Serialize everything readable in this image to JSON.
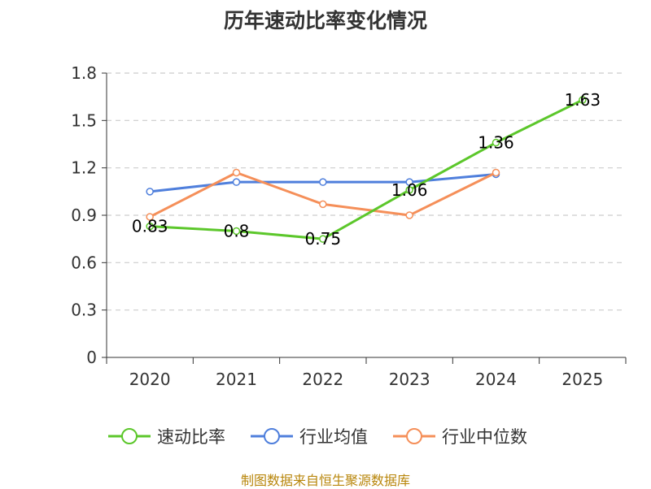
{
  "title": "历年速动比率变化情况",
  "source": "制图数据来自恒生聚源数据库",
  "chart_data": {
    "type": "line",
    "title": "历年速动比率变化情况",
    "categories": [
      "2020",
      "2021",
      "2022",
      "2023",
      "2024",
      "2025"
    ],
    "ylim": [
      0,
      1.8
    ],
    "yticks": [
      "0",
      "0.3",
      "0.6",
      "0.9",
      "1.2",
      "1.5",
      "1.8"
    ],
    "grid": true,
    "legend_position": "bottom",
    "series": [
      {
        "name": "速动比率",
        "color": "#5cc72b",
        "labeled": true,
        "values": [
          0.83,
          0.8,
          0.75,
          1.06,
          1.36,
          1.63
        ],
        "labels": [
          "0.83",
          "0.8",
          "0.75",
          "1.06",
          "1.36",
          "1.63"
        ]
      },
      {
        "name": "行业均值",
        "color": "#4f7fdc",
        "labeled": false,
        "values": [
          1.05,
          1.11,
          1.11,
          1.11,
          1.16,
          null
        ]
      },
      {
        "name": "行业中位数",
        "color": "#f58f59",
        "labeled": false,
        "values": [
          0.89,
          1.17,
          0.97,
          0.9,
          1.17,
          null
        ]
      }
    ]
  }
}
